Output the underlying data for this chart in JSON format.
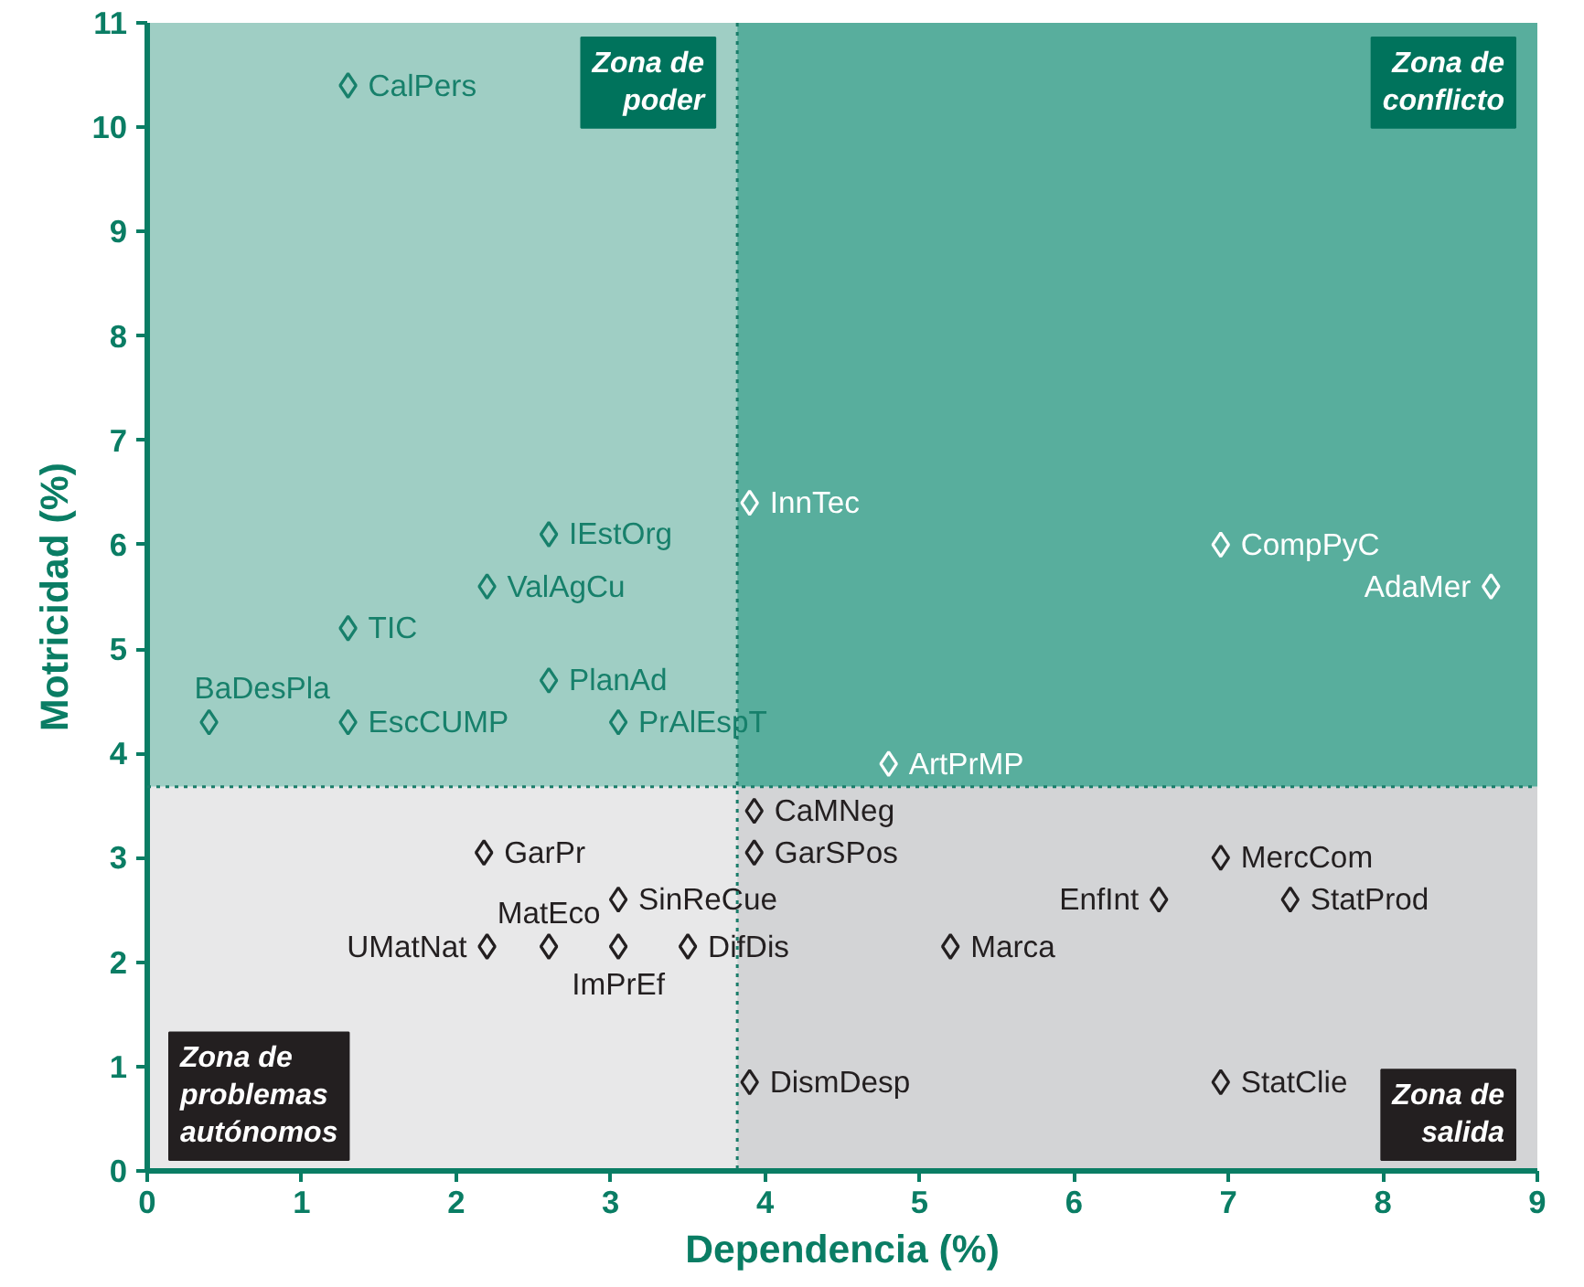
{
  "chart_data": {
    "type": "scatter",
    "xlabel": "Dependencia (%)",
    "ylabel": "Motricidad (%)",
    "xlim": [
      0,
      9
    ],
    "ylim": [
      0,
      11
    ],
    "xticks": [
      0,
      1,
      2,
      3,
      4,
      5,
      6,
      7,
      8,
      9
    ],
    "yticks": [
      0,
      1,
      2,
      3,
      4,
      5,
      6,
      7,
      8,
      9,
      10,
      11
    ],
    "marker": "diamond",
    "ref_lines": [
      {
        "axis": "x",
        "value": 3.82,
        "color": "#1a7d6a",
        "line_style": "dotted"
      },
      {
        "axis": "y",
        "value": 3.68,
        "color": "#1a7d6a",
        "line_style": "dotted"
      }
    ],
    "bands": [
      {
        "axis": "x",
        "from": 0,
        "to": 3.82,
        "color": "#9fcec4",
        "label": "Zona de\npoder"
      },
      {
        "axis": "x",
        "from": 3.82,
        "to": 9,
        "color": "#58ae9d",
        "label": "Zona de\nconflicto"
      },
      {
        "axis": "x",
        "from": 0,
        "to": 3.82,
        "color": "#e8e8e9",
        "label": "Zona de\nproblemas\nautónomos"
      },
      {
        "axis": "x",
        "from": 3.82,
        "to": 9,
        "color": "#d3d4d6",
        "label": "Zona de\nsalida"
      }
    ],
    "series": [
      {
        "name": "CalPers",
        "color": "#17806b",
        "x": [
          1.3
        ],
        "values": [
          10.4
        ]
      },
      {
        "name": "InnTec",
        "color": "#ffffff",
        "x": [
          3.9
        ],
        "values": [
          6.4
        ]
      },
      {
        "name": "CompPyC",
        "color": "#ffffff",
        "x": [
          6.95
        ],
        "values": [
          6.0
        ]
      },
      {
        "name": "AdaMer",
        "color": "#ffffff",
        "x": [
          8.7
        ],
        "values": [
          5.6
        ]
      },
      {
        "name": "IEstOrg",
        "color": "#17806b",
        "x": [
          2.6
        ],
        "values": [
          6.1
        ]
      },
      {
        "name": "ValAgCu",
        "color": "#17806b",
        "x": [
          2.2
        ],
        "values": [
          5.6
        ]
      },
      {
        "name": "TIC",
        "color": "#17806b",
        "x": [
          1.3
        ],
        "values": [
          5.2
        ]
      },
      {
        "name": "PlanAd",
        "color": "#17806b",
        "x": [
          2.6
        ],
        "values": [
          4.7
        ]
      },
      {
        "name": "BaDesPla",
        "color": "#17806b",
        "x": [
          0.4
        ],
        "values": [
          4.3
        ]
      },
      {
        "name": "EscCUMP",
        "color": "#17806b",
        "x": [
          1.3
        ],
        "values": [
          4.3
        ]
      },
      {
        "name": "PrAlEspT",
        "color": "#17806b",
        "x": [
          3.05
        ],
        "values": [
          4.3
        ]
      },
      {
        "name": "ArtPrMP",
        "color": "#ffffff",
        "x": [
          4.8
        ],
        "values": [
          3.9
        ]
      },
      {
        "name": "CaMNeg",
        "color": "#231f20",
        "x": [
          3.93
        ],
        "values": [
          3.45
        ]
      },
      {
        "name": "GarSPos",
        "color": "#231f20",
        "x": [
          3.93
        ],
        "values": [
          3.05
        ]
      },
      {
        "name": "GarPr",
        "color": "#231f20",
        "x": [
          2.18
        ],
        "values": [
          3.05
        ]
      },
      {
        "name": "SinReCue",
        "color": "#231f20",
        "x": [
          3.05
        ],
        "values": [
          2.6
        ]
      },
      {
        "name": "MercCom",
        "color": "#231f20",
        "x": [
          6.95
        ],
        "values": [
          3.0
        ]
      },
      {
        "name": "StatProd",
        "color": "#231f20",
        "x": [
          7.4
        ],
        "values": [
          2.6
        ]
      },
      {
        "name": "EnfInt",
        "color": "#231f20",
        "x": [
          6.55
        ],
        "values": [
          2.6
        ]
      },
      {
        "name": "Marca",
        "color": "#231f20",
        "x": [
          5.2
        ],
        "values": [
          2.15
        ]
      },
      {
        "name": "UMatNat",
        "color": "#231f20",
        "x": [
          2.2
        ],
        "values": [
          2.15
        ]
      },
      {
        "name": "MatEco",
        "color": "#231f20",
        "x": [
          2.6
        ],
        "values": [
          2.15
        ]
      },
      {
        "name": "ImPrEf",
        "color": "#231f20",
        "x": [
          3.05
        ],
        "values": [
          2.15
        ]
      },
      {
        "name": "DifDis",
        "color": "#231f20",
        "x": [
          3.5
        ],
        "values": [
          2.15
        ]
      },
      {
        "name": "DismDesp",
        "color": "#231f20",
        "x": [
          3.9
        ],
        "values": [
          0.85
        ]
      },
      {
        "name": "StatClie",
        "color": "#231f20",
        "x": [
          6.95
        ],
        "values": [
          0.85
        ]
      }
    ]
  }
}
